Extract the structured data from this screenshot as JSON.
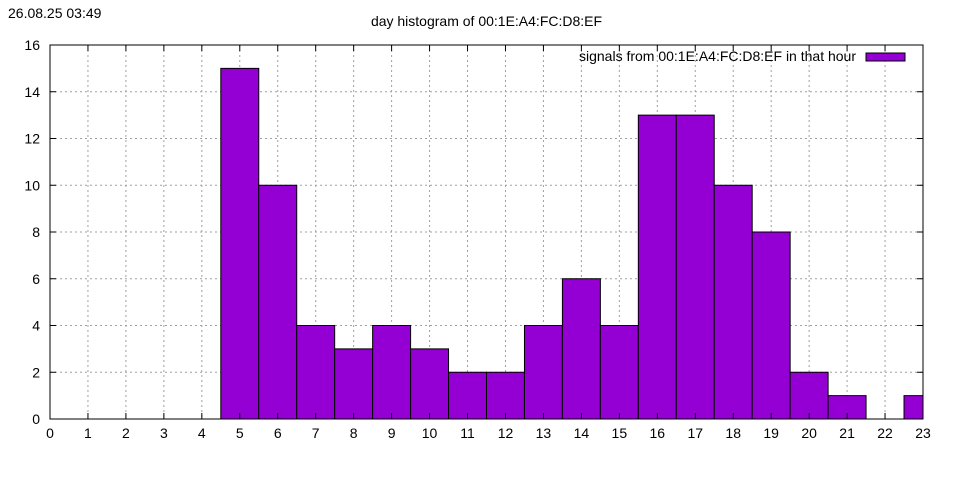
{
  "timestamp": "26.08.25 03:49",
  "chart_data": {
    "type": "bar",
    "title": "day histogram of 00:1E:A4:FC:D8:EF",
    "xlabel": "",
    "ylabel": "",
    "xlim": [
      0,
      23
    ],
    "ylim": [
      0,
      16
    ],
    "x_ticks": [
      "0",
      "1",
      "2",
      "3",
      "4",
      "5",
      "6",
      "7",
      "8",
      "9",
      "10",
      "11",
      "12",
      "13",
      "14",
      "15",
      "16",
      "17",
      "18",
      "19",
      "20",
      "21",
      "22",
      "23"
    ],
    "y_ticks": [
      "0",
      "2",
      "4",
      "6",
      "8",
      "10",
      "12",
      "14",
      "16"
    ],
    "grid": true,
    "legend": "top-right",
    "categories": [
      "0",
      "1",
      "2",
      "3",
      "4",
      "5",
      "6",
      "7",
      "8",
      "9",
      "10",
      "11",
      "12",
      "13",
      "14",
      "15",
      "16",
      "17",
      "18",
      "19",
      "20",
      "21",
      "22",
      "23"
    ],
    "series": [
      {
        "name": "signals from 00:1E:A4:FC:D8:EF in that hour",
        "color": "#9400d3",
        "values": [
          0,
          0,
          0,
          0,
          0,
          15,
          10,
          4,
          3,
          4,
          3,
          2,
          2,
          4,
          6,
          4,
          13,
          13,
          10,
          8,
          2,
          1,
          0,
          1
        ]
      }
    ]
  }
}
